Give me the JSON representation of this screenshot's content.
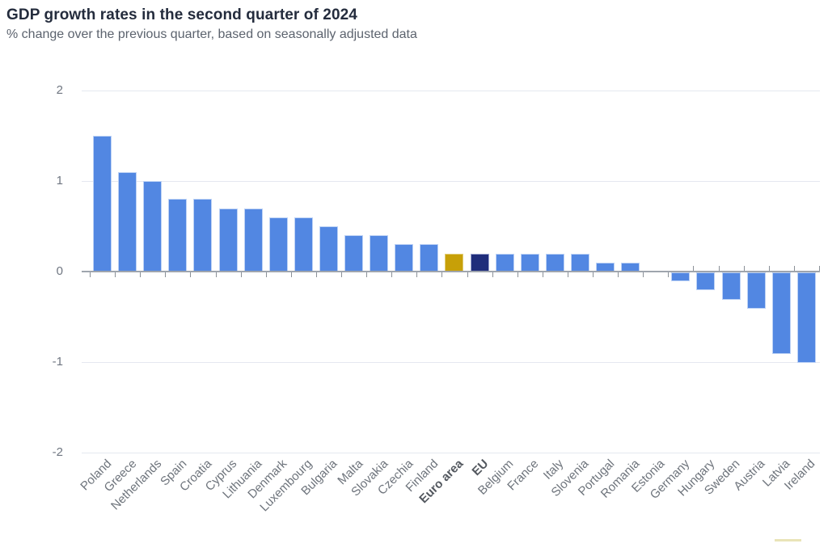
{
  "header": {
    "title": "GDP growth rates in the second quarter of 2024",
    "subtitle": "% change over the previous quarter, based on seasonally adjusted data"
  },
  "colors": {
    "title_text": "#242C3D",
    "subtitle_text": "#5C636E",
    "axis_text": "#6F7681",
    "axis_line": "#9FA5AD",
    "gridline": "#E5E8F0",
    "bar_default": "#5287E2",
    "bar_default_border": "#BDD2F5",
    "bar_euro_area": "#C7A008",
    "bar_euro_area_border": "#E0CC74",
    "bar_eu": "#1F2D7B",
    "bar_eu_border": "#9AA3CE",
    "cropped_bottom_right_element": "#E9E4B8"
  },
  "chart_data": {
    "type": "bar",
    "title": "GDP growth rates in the second quarter of 2024",
    "subtitle": "% change over the previous quarter, based on seasonally adjusted data",
    "xlabel": "",
    "ylabel": "",
    "ylim": [
      -2,
      2
    ],
    "yticks": [
      2,
      1,
      0,
      -1,
      -2
    ],
    "grid": "horizontal",
    "legend": "none",
    "points": [
      {
        "label": "Poland",
        "value": 1.5,
        "series": "default",
        "bold": false
      },
      {
        "label": "Greece",
        "value": 1.1,
        "series": "default",
        "bold": false
      },
      {
        "label": "Netherlands",
        "value": 1.0,
        "series": "default",
        "bold": false
      },
      {
        "label": "Spain",
        "value": 0.8,
        "series": "default",
        "bold": false
      },
      {
        "label": "Croatia",
        "value": 0.8,
        "series": "default",
        "bold": false
      },
      {
        "label": "Cyprus",
        "value": 0.7,
        "series": "default",
        "bold": false
      },
      {
        "label": "Lithuania",
        "value": 0.7,
        "series": "default",
        "bold": false
      },
      {
        "label": "Denmark",
        "value": 0.6,
        "series": "default",
        "bold": false
      },
      {
        "label": "Luxembourg",
        "value": 0.6,
        "series": "default",
        "bold": false
      },
      {
        "label": "Bulgaria",
        "value": 0.5,
        "series": "default",
        "bold": false
      },
      {
        "label": "Malta",
        "value": 0.4,
        "series": "default",
        "bold": false
      },
      {
        "label": "Slovakia",
        "value": 0.4,
        "series": "default",
        "bold": false
      },
      {
        "label": "Czechia",
        "value": 0.3,
        "series": "default",
        "bold": false
      },
      {
        "label": "Finland",
        "value": 0.3,
        "series": "default",
        "bold": false
      },
      {
        "label": "Euro area",
        "value": 0.2,
        "series": "euro_area",
        "bold": true
      },
      {
        "label": "EU",
        "value": 0.2,
        "series": "eu",
        "bold": true
      },
      {
        "label": "Belgium",
        "value": 0.2,
        "series": "default",
        "bold": false
      },
      {
        "label": "France",
        "value": 0.2,
        "series": "default",
        "bold": false
      },
      {
        "label": "Italy",
        "value": 0.2,
        "series": "default",
        "bold": false
      },
      {
        "label": "Slovenia",
        "value": 0.2,
        "series": "default",
        "bold": false
      },
      {
        "label": "Portugal",
        "value": 0.1,
        "series": "default",
        "bold": false
      },
      {
        "label": "Romania",
        "value": 0.1,
        "series": "default",
        "bold": false
      },
      {
        "label": "Estonia",
        "value": 0.0,
        "series": "default",
        "bold": false
      },
      {
        "label": "Germany",
        "value": -0.1,
        "series": "default",
        "bold": false
      },
      {
        "label": "Hungary",
        "value": -0.2,
        "series": "default",
        "bold": false
      },
      {
        "label": "Sweden",
        "value": -0.3,
        "series": "default",
        "bold": false
      },
      {
        "label": "Austria",
        "value": -0.4,
        "series": "default",
        "bold": false
      },
      {
        "label": "Latvia",
        "value": -0.9,
        "series": "default",
        "bold": false
      },
      {
        "label": "Ireland",
        "value": -1.0,
        "series": "default",
        "bold": false
      }
    ]
  }
}
